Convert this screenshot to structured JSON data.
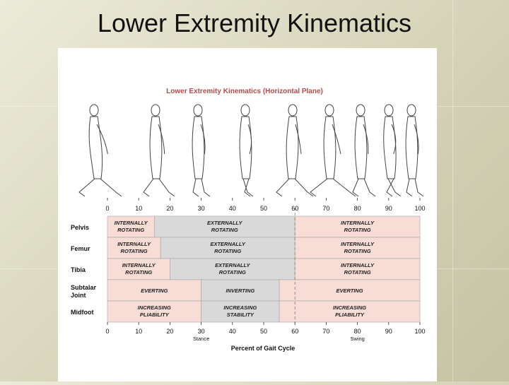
{
  "slide": {
    "title": "Lower Extremity Kinematics"
  },
  "figure": {
    "title": "Lower Extremity Kinematics (Horizontal Plane)",
    "x_ticks": [
      0,
      10,
      20,
      30,
      40,
      50,
      60,
      70,
      80,
      90,
      100
    ],
    "x_label": "Percent of Gait Cycle",
    "phase_labels": [
      {
        "text": "Stance",
        "at": 30
      },
      {
        "text": "Swing",
        "at": 80
      }
    ],
    "stance_swing_boundary": 60,
    "figures_count_note": "walking silhouettes shown at each 10% tick",
    "colors": {
      "pink": "#f8dcd6",
      "gray": "#d9d9d9",
      "title_red": "#b84a4a",
      "border": "#a5a5a5"
    },
    "rows": [
      {
        "label": "Pelvis",
        "segments": [
          {
            "start": 0,
            "end": 15,
            "text": [
              "INTERNALLY",
              "ROTATING"
            ],
            "color": "pink"
          },
          {
            "start": 15,
            "end": 60,
            "text": [
              "EXTERNALLY",
              "ROTATING"
            ],
            "color": "gray"
          },
          {
            "start": 60,
            "end": 100,
            "text": [
              "INTERNALLY",
              "ROTATING"
            ],
            "color": "pink"
          }
        ]
      },
      {
        "label": "Femur",
        "segments": [
          {
            "start": 0,
            "end": 17,
            "text": [
              "INTERNALLY",
              "ROTATING"
            ],
            "color": "pink"
          },
          {
            "start": 17,
            "end": 60,
            "text": [
              "EXTERNALLY",
              "ROTATING"
            ],
            "color": "gray"
          },
          {
            "start": 60,
            "end": 100,
            "text": [
              "INTERNALLY",
              "ROTATING"
            ],
            "color": "pink"
          }
        ]
      },
      {
        "label": "Tibia",
        "segments": [
          {
            "start": 0,
            "end": 20,
            "text": [
              "INTERNALLY",
              "ROTATING"
            ],
            "color": "pink"
          },
          {
            "start": 20,
            "end": 60,
            "text": [
              "EXTERNALLY",
              "ROTATING"
            ],
            "color": "gray"
          },
          {
            "start": 60,
            "end": 100,
            "text": [
              "INTERNALLY",
              "ROTATING"
            ],
            "color": "pink"
          }
        ]
      },
      {
        "label": [
          "Subtalar",
          "Joint"
        ],
        "segments": [
          {
            "start": 0,
            "end": 30,
            "text": [
              "EVERTING"
            ],
            "color": "pink"
          },
          {
            "start": 30,
            "end": 55,
            "text": [
              "INVERTING"
            ],
            "color": "gray"
          },
          {
            "start": 55,
            "end": 100,
            "text": [
              "EVERTING"
            ],
            "color": "pink"
          }
        ]
      },
      {
        "label": "Midfoot",
        "segments": [
          {
            "start": 0,
            "end": 30,
            "text": [
              "INCREASING",
              "PLIABILITY"
            ],
            "color": "pink"
          },
          {
            "start": 30,
            "end": 55,
            "text": [
              "INCREASING",
              "STABILITY"
            ],
            "color": "gray"
          },
          {
            "start": 55,
            "end": 100,
            "text": [
              "INCREASING",
              "PLIABILITY"
            ],
            "color": "pink"
          }
        ]
      }
    ]
  }
}
